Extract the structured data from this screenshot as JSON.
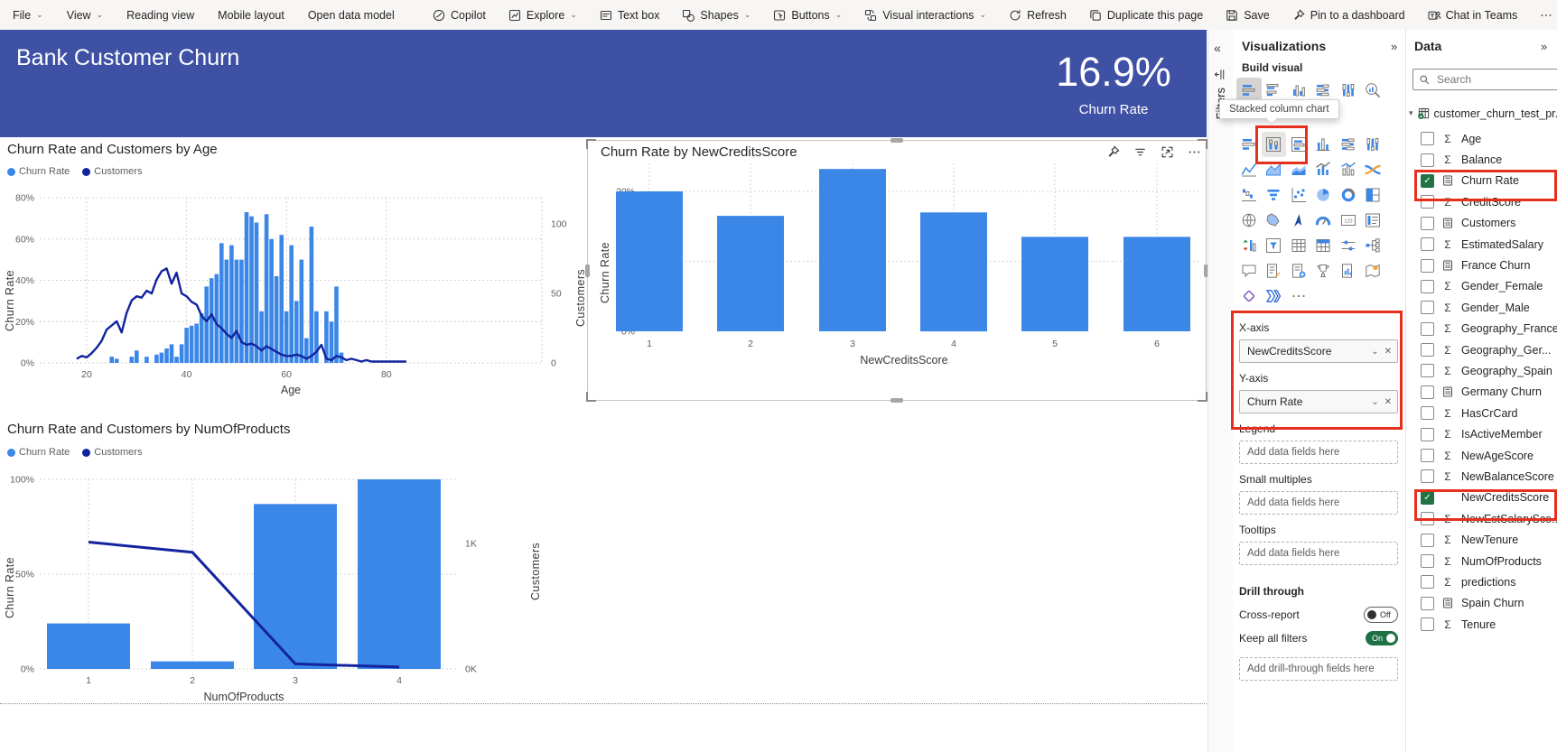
{
  "toolbar": {
    "left": [
      {
        "label": "File",
        "chevron": true
      },
      {
        "label": "View",
        "chevron": true
      },
      {
        "label": "Reading view"
      },
      {
        "label": "Mobile layout"
      },
      {
        "label": "Open data model"
      }
    ],
    "right": [
      {
        "label": "Copilot",
        "icon": "copilot"
      },
      {
        "label": "Explore",
        "icon": "explore",
        "chevron": true
      },
      {
        "label": "Text box",
        "icon": "textbox"
      },
      {
        "label": "Shapes",
        "icon": "shapes",
        "chevron": true
      },
      {
        "label": "Buttons",
        "icon": "buttons",
        "chevron": true
      },
      {
        "label": "Visual interactions",
        "icon": "interactions",
        "chevron": true
      },
      {
        "label": "Refresh",
        "icon": "refresh"
      },
      {
        "label": "Duplicate this page",
        "icon": "duplicate"
      },
      {
        "label": "Save",
        "icon": "save"
      },
      {
        "label": "Pin to a dashboard",
        "icon": "pin"
      },
      {
        "label": "Chat in Teams",
        "icon": "teams"
      },
      {
        "label": "",
        "icon": "more"
      }
    ]
  },
  "report_header": {
    "title": "Bank Customer Churn",
    "kpi_value": "16.9%",
    "kpi_label": "Churn Rate"
  },
  "visual_header_icons": [
    {
      "name": "pin-visual",
      "icon": "pin"
    },
    {
      "name": "filter-applied",
      "icon": "filter"
    },
    {
      "name": "focus-mode",
      "icon": "focus"
    },
    {
      "name": "more-options",
      "icon": "more"
    }
  ],
  "chart_data": [
    {
      "type": "combo",
      "title": "Churn Rate and Customers by Age",
      "xlabel": "Age",
      "legend": [
        "Churn Rate",
        "Customers"
      ],
      "bar_series": "Churn Rate",
      "line_series": "Customers",
      "y_left": {
        "label": "Churn Rate",
        "ticks": [
          "0%",
          "20%",
          "40%",
          "60%",
          "80%"
        ],
        "tick_values": [
          0,
          20,
          40,
          60,
          80
        ],
        "max": 80
      },
      "y_right": {
        "label": "Customers",
        "ticks": [
          "0",
          "50",
          "100"
        ],
        "tick_values": [
          0,
          50,
          100
        ],
        "max": 119
      },
      "x_ticks": [
        20,
        40,
        60,
        80
      ],
      "points": [
        [
          18,
          0,
          3
        ],
        [
          19,
          0,
          5
        ],
        [
          20,
          0,
          4
        ],
        [
          21,
          0,
          7
        ],
        [
          22,
          0,
          11
        ],
        [
          23,
          0,
          16
        ],
        [
          24,
          0,
          24
        ],
        [
          25,
          3,
          27
        ],
        [
          26,
          2,
          30
        ],
        [
          27,
          0,
          22
        ],
        [
          28,
          0,
          36
        ],
        [
          29,
          3,
          45
        ],
        [
          30,
          6,
          48
        ],
        [
          31,
          0,
          47
        ],
        [
          32,
          3,
          52
        ],
        [
          33,
          0,
          50
        ],
        [
          34,
          4,
          60
        ],
        [
          35,
          5,
          66
        ],
        [
          36,
          7,
          68
        ],
        [
          37,
          9,
          57
        ],
        [
          38,
          3,
          65
        ],
        [
          39,
          9,
          50
        ],
        [
          40,
          17,
          48
        ],
        [
          41,
          18,
          44
        ],
        [
          42,
          19,
          42
        ],
        [
          43,
          24,
          34
        ],
        [
          44,
          37,
          30
        ],
        [
          45,
          41,
          35
        ],
        [
          46,
          43,
          28
        ],
        [
          47,
          58,
          25
        ],
        [
          48,
          50,
          21
        ],
        [
          49,
          57,
          18
        ],
        [
          50,
          50,
          23
        ],
        [
          51,
          50,
          15
        ],
        [
          52,
          73,
          13
        ],
        [
          53,
          71,
          14
        ],
        [
          54,
          68,
          12
        ],
        [
          55,
          25,
          9
        ],
        [
          56,
          72,
          12
        ],
        [
          57,
          60,
          10
        ],
        [
          58,
          42,
          8
        ],
        [
          59,
          62,
          6
        ],
        [
          60,
          25,
          5
        ],
        [
          61,
          57,
          5
        ],
        [
          62,
          30,
          6
        ],
        [
          63,
          50,
          5
        ],
        [
          64,
          12,
          3
        ],
        [
          65,
          66,
          5
        ],
        [
          66,
          25,
          8
        ],
        [
          67,
          0,
          13
        ],
        [
          68,
          25,
          3
        ],
        [
          69,
          20,
          2
        ],
        [
          70,
          37,
          5
        ],
        [
          71,
          5,
          4
        ],
        [
          72,
          0,
          2
        ],
        [
          73,
          0,
          3
        ],
        [
          74,
          0,
          2
        ],
        [
          75,
          0,
          1
        ],
        [
          76,
          0,
          2
        ],
        [
          77,
          0,
          1
        ],
        [
          78,
          0,
          1
        ],
        [
          80,
          0,
          1
        ],
        [
          82,
          0,
          1
        ],
        [
          84,
          0,
          1
        ]
      ]
    },
    {
      "type": "bar",
      "title": "Churn Rate by NewCreditsScore",
      "xlabel": "NewCreditsScore",
      "ylabel": "Churn Rate",
      "categories": [
        "1",
        "2",
        "3",
        "4",
        "5",
        "6"
      ],
      "values": [
        20,
        16.5,
        23.2,
        17,
        13.5,
        13.5
      ],
      "ticks": [
        "0%",
        "10%",
        "20%"
      ],
      "tick_values": [
        0,
        10,
        20
      ],
      "max": 24.3
    },
    {
      "type": "combo_cat",
      "title": "Churn Rate and Customers by NumOfProducts",
      "xlabel": "NumOfProducts",
      "legend": [
        "Churn Rate",
        "Customers"
      ],
      "categories": [
        "1",
        "2",
        "3",
        "4"
      ],
      "bar_values": [
        24,
        4,
        87,
        100
      ],
      "line_values": [
        1010,
        930,
        40,
        15
      ],
      "y_left": {
        "label": "Churn Rate",
        "ticks": [
          "0%",
          "50%",
          "100%"
        ],
        "tick_values": [
          0,
          50,
          100
        ],
        "max": 100
      },
      "y_right": {
        "label": "Customers",
        "ticks": [
          "0K",
          "1K"
        ],
        "tick_values": [
          0,
          1000
        ],
        "max": 1510
      }
    }
  ],
  "filters_pane": {
    "label": "Filters"
  },
  "visualizations_pane": {
    "title": "Visualizations",
    "expand_icon": "»",
    "build_visual": "Build visual",
    "tooltip": "Stacked column chart",
    "more_label": "⋯",
    "gallery_row1": [
      {
        "name": "stacked-bar-chart",
        "kind": "hbar",
        "selected": true
      },
      {
        "name": "clustered-bar-chart",
        "kind": "hbar2"
      },
      {
        "name": "clustered-column-chart",
        "kind": "vbar2"
      },
      {
        "name": "100-stacked-bar-chart",
        "kind": "hbar100"
      },
      {
        "name": "100-stacked-column-chart",
        "kind": "vbar100"
      },
      {
        "name": "auto-visual",
        "kind": "zoomchart"
      }
    ],
    "gallery_rows": [
      [
        {
          "name": "bar-chart",
          "kind": "hbar"
        },
        {
          "name": "stacked-column-chart",
          "kind": "vbarframe",
          "hover": true,
          "boxed": true
        },
        {
          "name": "stacked-bar-100",
          "kind": "hbarframe"
        },
        {
          "name": "column-chart",
          "kind": "vbar"
        },
        {
          "name": "100-stacked-bar",
          "kind": "hbar100"
        },
        {
          "name": "100-stacked-column",
          "kind": "vbar100"
        }
      ],
      [
        {
          "name": "line-chart",
          "kind": "line"
        },
        {
          "name": "area-chart",
          "kind": "area"
        },
        {
          "name": "stacked-area-chart",
          "kind": "sarea"
        },
        {
          "name": "line-and-stacked-column-chart",
          "kind": "combo"
        },
        {
          "name": "line-and-clustered-column-chart",
          "kind": "combo2"
        },
        {
          "name": "ribbon-chart",
          "kind": "ribbon"
        }
      ],
      [
        {
          "name": "waterfall-chart",
          "kind": "waterfall"
        },
        {
          "name": "funnel-chart",
          "kind": "funnel"
        },
        {
          "name": "scatter-chart",
          "kind": "scatter"
        },
        {
          "name": "pie-chart",
          "kind": "pie"
        },
        {
          "name": "donut-chart",
          "kind": "donut"
        },
        {
          "name": "treemap",
          "kind": "treemap"
        }
      ],
      [
        {
          "name": "map",
          "kind": "map"
        },
        {
          "name": "filled-map",
          "kind": "fmap"
        },
        {
          "name": "azure-map",
          "kind": "amap"
        },
        {
          "name": "gauge",
          "kind": "gauge"
        },
        {
          "name": "card",
          "kind": "card"
        },
        {
          "name": "multi-row-card",
          "kind": "mcard"
        }
      ],
      [
        {
          "name": "kpi",
          "kind": "kpi"
        },
        {
          "name": "slicer",
          "kind": "slicer"
        },
        {
          "name": "table",
          "kind": "table"
        },
        {
          "name": "matrix",
          "kind": "matrix"
        },
        {
          "name": "field-parameters",
          "kind": "slider"
        },
        {
          "name": "decomposition-tree",
          "kind": "dtree"
        }
      ],
      [
        {
          "name": "qa-visual",
          "kind": "chat"
        },
        {
          "name": "smart-narrative",
          "kind": "note"
        },
        {
          "name": "paginated-report",
          "kind": "docplus"
        },
        {
          "name": "metrics",
          "kind": "trophy"
        },
        {
          "name": "power-bi-report",
          "kind": "docchart"
        },
        {
          "name": "arcgis-map",
          "kind": "mappin"
        }
      ],
      [
        {
          "name": "power-apps",
          "kind": "papps"
        },
        {
          "name": "power-automate",
          "kind": "pflow"
        },
        {
          "name": "more-visuals",
          "kind": "dots"
        }
      ]
    ],
    "wells": [
      {
        "label": "X-axis",
        "field": "NewCreditsScore"
      },
      {
        "label": "Y-axis",
        "field": "Churn Rate"
      },
      {
        "label": "Legend",
        "placeholder": "Add data fields here"
      },
      {
        "label": "Small multiples",
        "placeholder": "Add data fields here"
      },
      {
        "label": "Tooltips",
        "placeholder": "Add data fields here"
      }
    ],
    "drill_through": {
      "title": "Drill through",
      "toggles": [
        {
          "label": "Cross-report",
          "state": "Off"
        },
        {
          "label": "Keep all filters",
          "state": "On"
        }
      ],
      "placeholder": "Add drill-through fields here"
    }
  },
  "data_pane": {
    "title": "Data",
    "expand_icon": "»",
    "search_placeholder": "Search",
    "table": {
      "name": "customer_churn_test_pr...",
      "checked": true
    },
    "fields": [
      {
        "name": "Age",
        "icon": "sigma"
      },
      {
        "name": "Balance",
        "icon": "sigma"
      },
      {
        "name": "Churn Rate",
        "icon": "calc",
        "checked": true,
        "highlight": true
      },
      {
        "name": "CreditScore",
        "icon": "sigma"
      },
      {
        "name": "Customers",
        "icon": "calc"
      },
      {
        "name": "EstimatedSalary",
        "icon": "sigma"
      },
      {
        "name": "France Churn",
        "icon": "calc"
      },
      {
        "name": "Gender_Female",
        "icon": "sigma"
      },
      {
        "name": "Gender_Male",
        "icon": "sigma"
      },
      {
        "name": "Geography_France",
        "icon": "sigma"
      },
      {
        "name": "Geography_Ger...",
        "icon": "sigma"
      },
      {
        "name": "Geography_Spain",
        "icon": "sigma"
      },
      {
        "name": "Germany Churn",
        "icon": "calc"
      },
      {
        "name": "HasCrCard",
        "icon": "sigma"
      },
      {
        "name": "IsActiveMember",
        "icon": "sigma"
      },
      {
        "name": "NewAgeScore",
        "icon": "sigma"
      },
      {
        "name": "NewBalanceScore",
        "icon": "sigma"
      },
      {
        "name": "NewCreditsScore",
        "icon": "none",
        "checked": true,
        "highlight": true
      },
      {
        "name": "NewEstSalarySco...",
        "icon": "sigma"
      },
      {
        "name": "NewTenure",
        "icon": "sigma"
      },
      {
        "name": "NumOfProducts",
        "icon": "sigma"
      },
      {
        "name": "predictions",
        "icon": "sigma"
      },
      {
        "name": "Spain Churn",
        "icon": "calc"
      },
      {
        "name": "Tenure",
        "icon": "sigma"
      }
    ]
  },
  "colors": {
    "header_bg": "#3F51A5",
    "bar_blue": "#3B87E8",
    "line_navy": "#12239E",
    "annotation_red": "#E5301D",
    "toggle_green": "#1D7145",
    "check_green": "#217346",
    "axis_text": "#605E5C",
    "title_text": "#252423"
  }
}
